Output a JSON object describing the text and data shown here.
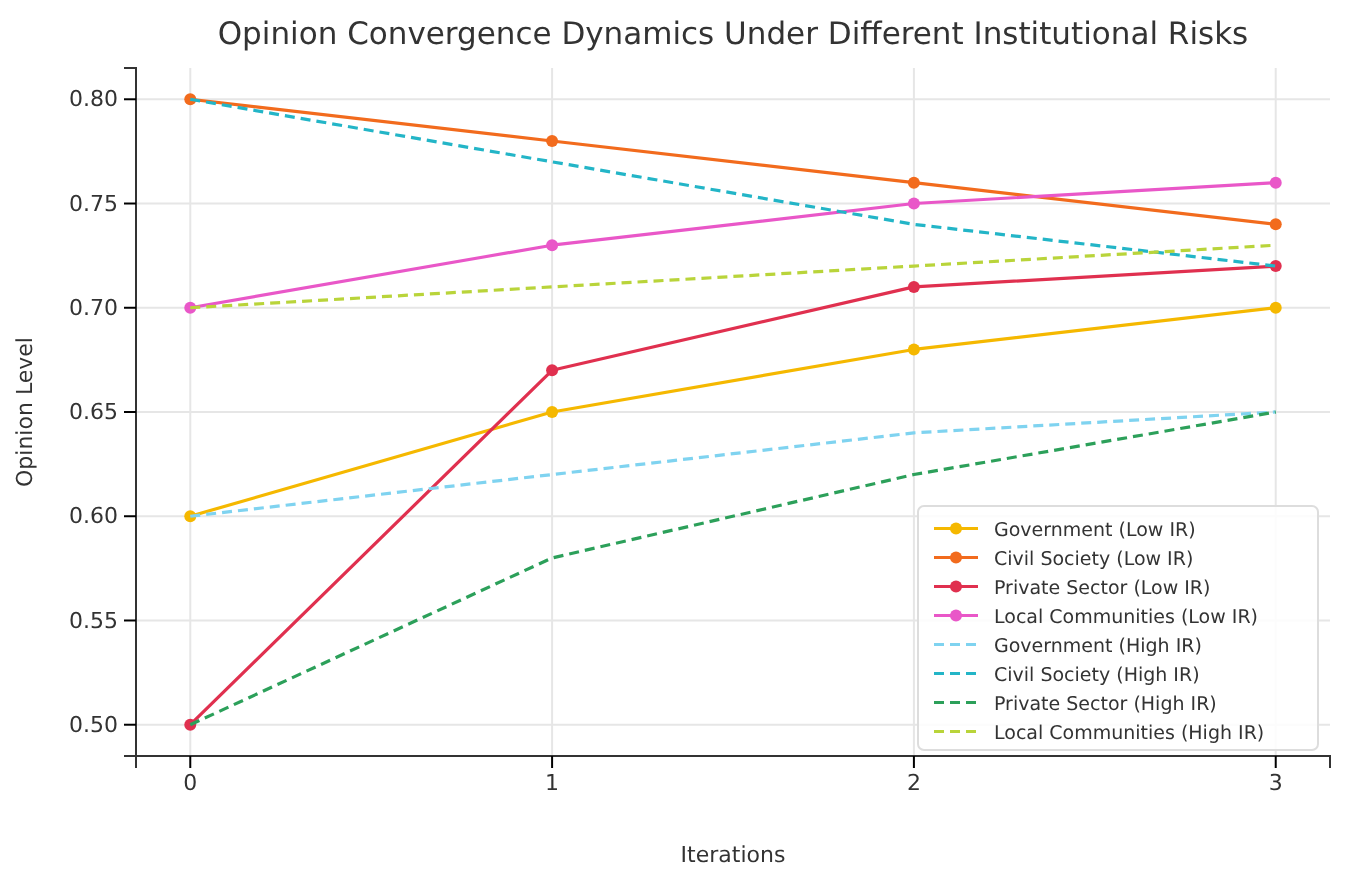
{
  "chart_data": {
    "type": "line",
    "title": "Opinion Convergence Dynamics Under Different Institutional Risks",
    "xlabel": "Iterations",
    "ylabel": "Opinion Level",
    "x": [
      0,
      1,
      2,
      3
    ],
    "xlim": [
      -0.15,
      3.15
    ],
    "xticks": [
      0,
      1,
      2,
      3
    ],
    "ylim": [
      0.485,
      0.815
    ],
    "yticks": [
      {
        "value": 0.5,
        "label": "0.50"
      },
      {
        "value": 0.55,
        "label": "0.55"
      },
      {
        "value": 0.6,
        "label": "0.60"
      },
      {
        "value": 0.65,
        "label": "0.65"
      },
      {
        "value": 0.7,
        "label": "0.70"
      },
      {
        "value": 0.75,
        "label": "0.75"
      },
      {
        "value": 0.8,
        "label": "0.80"
      }
    ],
    "grid": true,
    "legend": "bottom right",
    "series": [
      {
        "name": "Government (Low IR)",
        "color": "#f5b800",
        "values": [
          0.6,
          0.65,
          0.68,
          0.7
        ],
        "marker": "circle",
        "line_style": "solid"
      },
      {
        "name": "Civil Society (Low IR)",
        "color": "#f26b1d",
        "values": [
          0.8,
          0.78,
          0.76,
          0.74
        ],
        "marker": "circle",
        "line_style": "solid"
      },
      {
        "name": "Private Sector (Low IR)",
        "color": "#e0304f",
        "values": [
          0.5,
          0.67,
          0.71,
          0.72
        ],
        "marker": "circle",
        "line_style": "solid"
      },
      {
        "name": "Local Communities (Low IR)",
        "color": "#e957c8",
        "values": [
          0.7,
          0.73,
          0.75,
          0.76
        ],
        "marker": "circle",
        "line_style": "solid"
      },
      {
        "name": "Government (High IR)",
        "color": "#7fd3f0",
        "values": [
          0.6,
          0.62,
          0.64,
          0.65
        ],
        "marker": "none",
        "line_style": "dashed"
      },
      {
        "name": "Civil Society (High IR)",
        "color": "#23b5c7",
        "values": [
          0.8,
          0.77,
          0.74,
          0.72
        ],
        "marker": "none",
        "line_style": "dashed"
      },
      {
        "name": "Private Sector (High IR)",
        "color": "#2ca05a",
        "values": [
          0.5,
          0.58,
          0.62,
          0.65
        ],
        "marker": "none",
        "line_style": "dashed"
      },
      {
        "name": "Local Communities (High IR)",
        "color": "#b9d43a",
        "values": [
          0.7,
          0.71,
          0.72,
          0.73
        ],
        "marker": "none",
        "line_style": "dashed"
      }
    ]
  }
}
